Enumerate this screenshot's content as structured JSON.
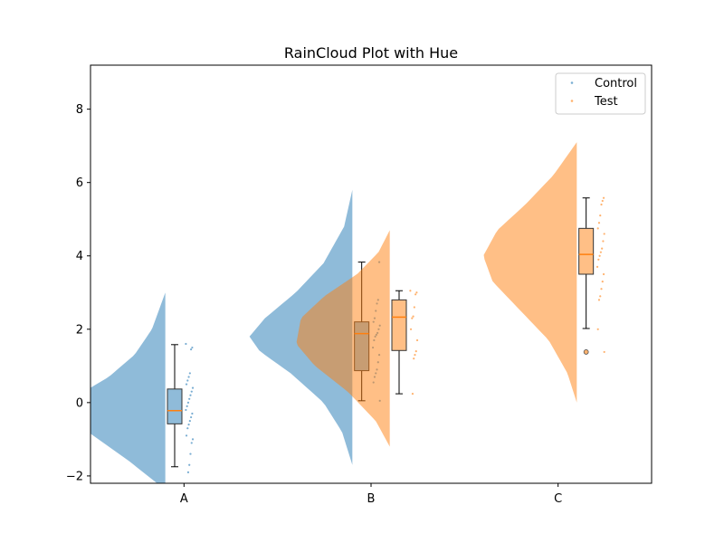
{
  "chart_data": {
    "type": "raincloud",
    "title": "RainCloud Plot with Hue",
    "xlabel": "",
    "ylabel": "",
    "categories": [
      "A",
      "B",
      "C"
    ],
    "ylim": [
      -2.2,
      9.2
    ],
    "yticks": [
      -2,
      0,
      2,
      4,
      6,
      8
    ],
    "yticks_labels": [
      "−2",
      "0",
      "2",
      "4",
      "6",
      "8"
    ],
    "legend": {
      "placement": "top-right",
      "entries": [
        "Control",
        "Test"
      ]
    },
    "series": [
      {
        "name": "Control",
        "color": "#1f77b4",
        "groups": [
          {
            "category": "A",
            "box": {
              "whisker_low": -1.75,
              "q1": -0.58,
              "median": -0.22,
              "q3": 0.37,
              "whisker_high": 1.58
            },
            "violin": {
              "min": -2.2,
              "max": 3.0,
              "width": 0.55,
              "density": [
                [
                  -2.2,
                  0.08
                ],
                [
                  -1.6,
                  0.35
                ],
                [
                  -1.0,
                  0.65
                ],
                [
                  -0.5,
                  0.9
                ],
                [
                  -0.2,
                  1.0
                ],
                [
                  0.2,
                  0.85
                ],
                [
                  0.7,
                  0.55
                ],
                [
                  1.3,
                  0.3
                ],
                [
                  2.0,
                  0.13
                ],
                [
                  3.0,
                  0.0
                ]
              ]
            },
            "points": [
              1.6,
              1.5,
              1.45,
              0.8,
              0.7,
              0.6,
              0.5,
              0.4,
              0.3,
              0.2,
              0.1,
              0.0,
              -0.1,
              -0.2,
              -0.3,
              -0.4,
              -0.5,
              -0.6,
              -0.7,
              -0.9,
              -1.0,
              -1.1,
              -1.4,
              -1.7,
              -1.9
            ]
          },
          {
            "category": "B",
            "box": {
              "whisker_low": 0.05,
              "q1": 0.87,
              "median": 1.88,
              "q3": 2.2,
              "whisker_high": 3.83
            },
            "violin": {
              "min": -1.7,
              "max": 5.8,
              "width": 0.55,
              "density": [
                [
                  -1.7,
                  0.0
                ],
                [
                  -0.8,
                  0.1
                ],
                [
                  0.0,
                  0.28
                ],
                [
                  0.8,
                  0.6
                ],
                [
                  1.4,
                  0.9
                ],
                [
                  1.8,
                  1.0
                ],
                [
                  2.3,
                  0.85
                ],
                [
                  3.0,
                  0.55
                ],
                [
                  3.8,
                  0.28
                ],
                [
                  4.8,
                  0.08
                ],
                [
                  5.8,
                  0.0
                ]
              ]
            },
            "points": [
              3.83,
              2.8,
              2.7,
              2.5,
              2.3,
              2.2,
              2.1,
              2.0,
              1.9,
              1.85,
              1.8,
              1.7,
              1.5,
              1.3,
              1.1,
              0.9,
              0.8,
              0.7,
              0.55,
              0.05
            ]
          }
        ]
      },
      {
        "name": "Test",
        "color": "#ff7f0e",
        "groups": [
          {
            "category": "B",
            "box": {
              "whisker_low": 0.24,
              "q1": 1.42,
              "median": 2.33,
              "q3": 2.8,
              "whisker_high": 3.05
            },
            "violin": {
              "min": -1.2,
              "max": 4.7,
              "width": 0.5,
              "density": [
                [
                  -1.2,
                  0.0
                ],
                [
                  -0.5,
                  0.15
                ],
                [
                  0.3,
                  0.45
                ],
                [
                  1.0,
                  0.8
                ],
                [
                  1.6,
                  1.0
                ],
                [
                  2.3,
                  0.95
                ],
                [
                  2.9,
                  0.7
                ],
                [
                  3.5,
                  0.35
                ],
                [
                  4.1,
                  0.12
                ],
                [
                  4.7,
                  0.0
                ]
              ]
            },
            "points": [
              3.05,
              3.0,
              2.95,
              2.6,
              2.35,
              2.3,
              2.0,
              1.7,
              1.4,
              1.3,
              1.2,
              0.24
            ]
          },
          {
            "category": "C",
            "box": {
              "whisker_low": 2.02,
              "q1": 3.5,
              "median": 4.04,
              "q3": 4.75,
              "whisker_high": 5.58
            },
            "outliers": [
              1.38
            ],
            "violin": {
              "min": 0.0,
              "max": 7.1,
              "width": 0.5,
              "density": [
                [
                  0.0,
                  0.0
                ],
                [
                  0.8,
                  0.1
                ],
                [
                  1.7,
                  0.3
                ],
                [
                  2.5,
                  0.6
                ],
                [
                  3.3,
                  0.9
                ],
                [
                  4.0,
                  1.0
                ],
                [
                  4.7,
                  0.85
                ],
                [
                  5.4,
                  0.55
                ],
                [
                  6.2,
                  0.25
                ],
                [
                  7.1,
                  0.0
                ]
              ]
            },
            "points": [
              5.58,
              5.5,
              5.4,
              5.1,
              4.9,
              4.75,
              4.6,
              4.4,
              4.2,
              4.1,
              4.0,
              3.9,
              3.7,
              3.5,
              3.3,
              3.1,
              2.9,
              2.8,
              2.0,
              1.38
            ]
          }
        ]
      }
    ]
  }
}
